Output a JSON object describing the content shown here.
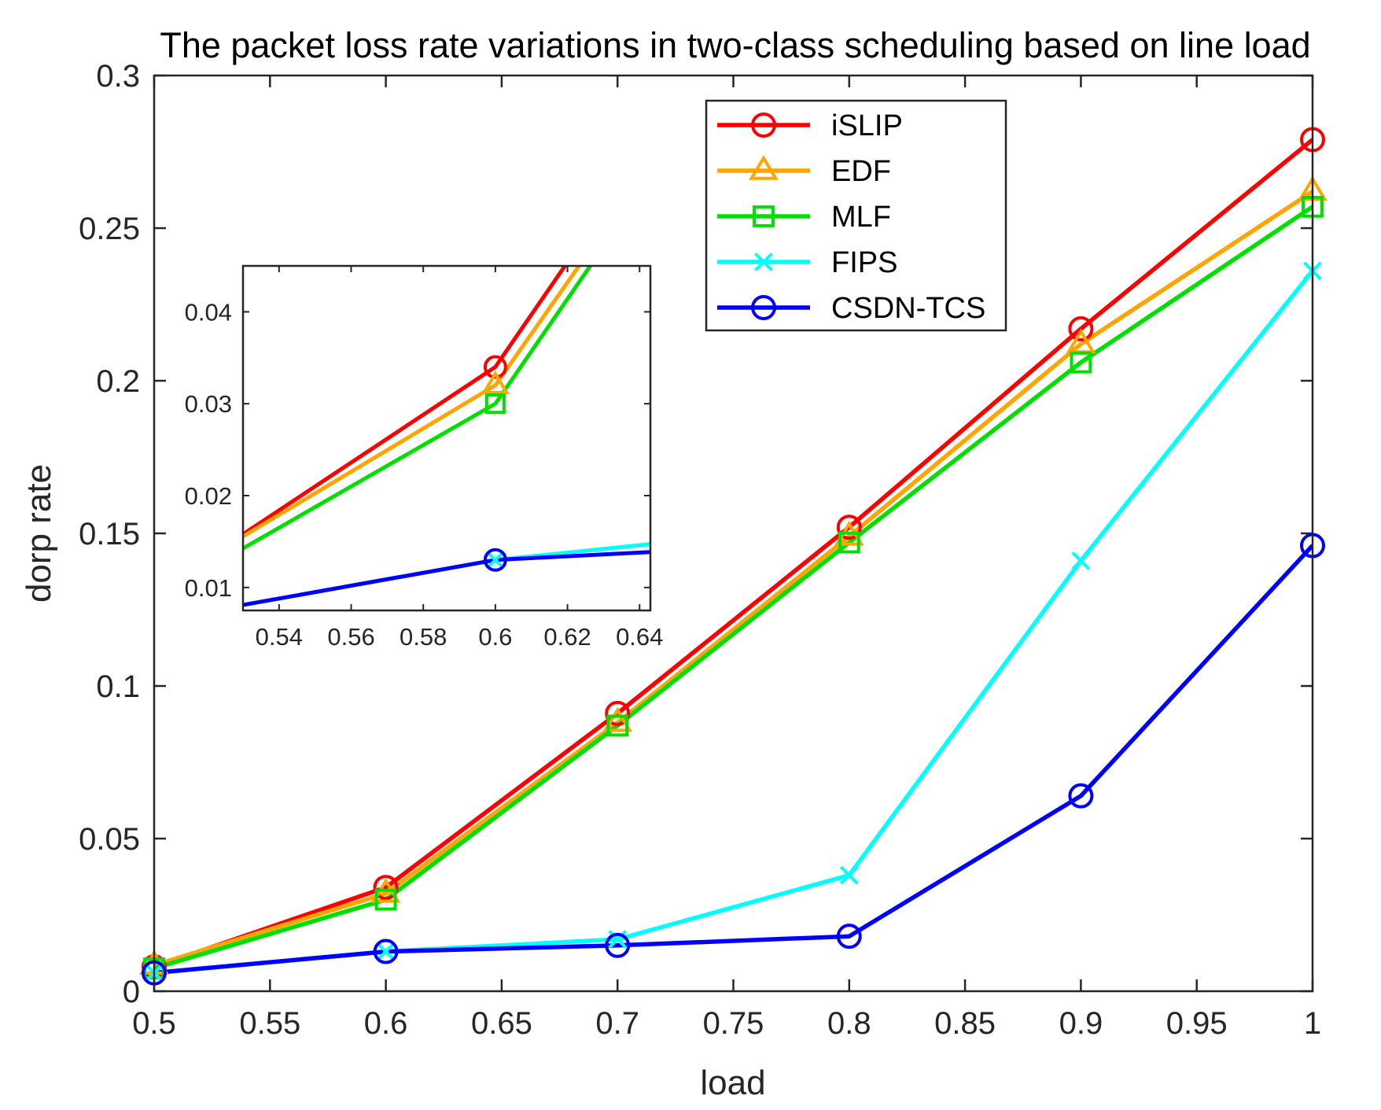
{
  "chart_data": {
    "type": "line",
    "title": "The packet loss rate variations in two-class scheduling based on line load",
    "xlabel": "load",
    "ylabel": "dorp rate",
    "xlim": [
      0.5,
      1
    ],
    "ylim": [
      0,
      0.3
    ],
    "xticks": [
      0.5,
      0.55,
      0.6,
      0.65,
      0.7,
      0.75,
      0.8,
      0.85,
      0.9,
      0.95,
      1
    ],
    "xtick_labels": [
      "0.5",
      "0.55",
      "0.6",
      "0.65",
      "0.7",
      "0.75",
      "0.8",
      "0.85",
      "0.9",
      "0.95",
      "1"
    ],
    "yticks": [
      0,
      0.05,
      0.1,
      0.15,
      0.2,
      0.25,
      0.3
    ],
    "ytick_labels": [
      "0",
      "0.05",
      "0.1",
      "0.15",
      "0.2",
      "0.25",
      "0.3"
    ],
    "grid": false,
    "legend_position": "top-center",
    "x": [
      0.5,
      0.6,
      0.7,
      0.8,
      0.9,
      1.0
    ],
    "series": [
      {
        "name": "iSLIP",
        "color": "#ff0000",
        "marker": "circle",
        "values": [
          0.008,
          0.034,
          0.091,
          0.152,
          0.217,
          0.279
        ]
      },
      {
        "name": "EDF",
        "color": "#ffa500",
        "marker": "triangle",
        "values": [
          0.0085,
          0.032,
          0.088,
          0.149,
          0.212,
          0.262
        ]
      },
      {
        "name": "MLF",
        "color": "#00e000",
        "marker": "square",
        "values": [
          0.0075,
          0.03,
          0.087,
          0.147,
          0.206,
          0.257
        ]
      },
      {
        "name": "FIPS",
        "color": "#00ffff",
        "marker": "x",
        "values": [
          0.006,
          0.013,
          0.017,
          0.038,
          0.141,
          0.236
        ]
      },
      {
        "name": "CSDN-TCS",
        "color": "#0000ff",
        "marker": "circle",
        "values": [
          0.006,
          0.013,
          0.015,
          0.018,
          0.064,
          0.146
        ]
      }
    ],
    "inset": {
      "xlim": [
        0.53,
        0.643
      ],
      "ylim": [
        0.0075,
        0.045
      ],
      "xticks": [
        0.54,
        0.56,
        0.58,
        0.6,
        0.62,
        0.64
      ],
      "xtick_labels": [
        "0.54",
        "0.56",
        "0.58",
        "0.6",
        "0.62",
        "0.64"
      ],
      "yticks": [
        0.01,
        0.02,
        0.03,
        0.04
      ],
      "ytick_labels": [
        "0.01",
        "0.02",
        "0.03",
        "0.04"
      ]
    }
  }
}
